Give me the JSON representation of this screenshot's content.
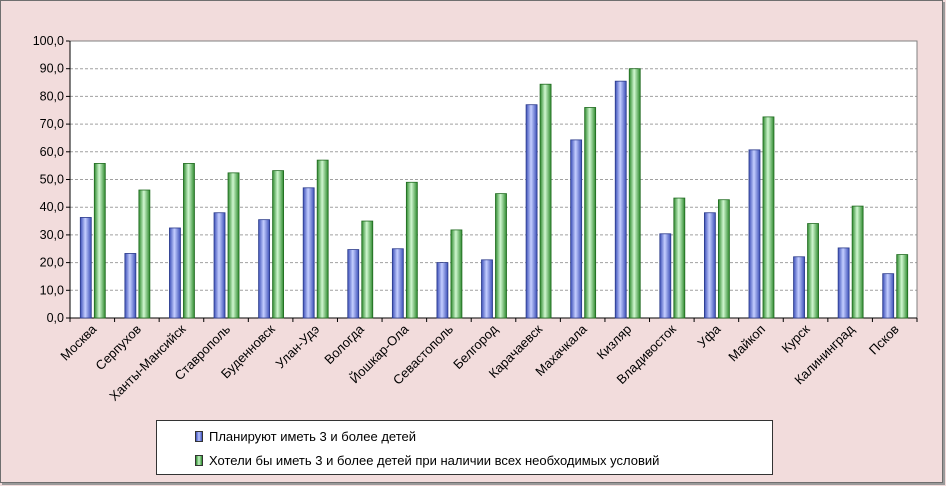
{
  "colors": {
    "background": "#f2dcdc",
    "plan_fill": "#8a9ef0",
    "plan_stroke": "#2a3a8a",
    "want_fill": "#8ee08e",
    "want_stroke": "#1f6a1f",
    "grid": "#a0a0a0"
  },
  "legend": {
    "plan_label": "Планируют иметь 3 и более детей",
    "want_label": "Хотели бы иметь 3 и более детей при наличии всех необходимых условий"
  },
  "chart_data": {
    "type": "bar",
    "categories": [
      "Москва",
      "Серпухов",
      "Ханты-Мансийск",
      "Ставрополь",
      "Буденновск",
      "Улан-Удэ",
      "Вологда",
      "Йошкар-Ола",
      "Севастополь",
      "Белгород",
      "Карачаевск",
      "Махачкала",
      "Кизляр",
      "Владивосток",
      "Уфа",
      "Майкоп",
      "Курск",
      "Калининград",
      "Псков"
    ],
    "series": [
      {
        "name": "Планируют иметь 3 и более детей",
        "values": [
          36.3,
          23.3,
          32.5,
          38.0,
          35.5,
          47.0,
          24.7,
          25.0,
          20.0,
          21.0,
          77.0,
          64.3,
          85.5,
          30.4,
          38.0,
          60.7,
          22.1,
          25.3,
          16.0
        ]
      },
      {
        "name": "Хотели бы иметь 3 и более детей при наличии всех необходимых условий",
        "values": [
          55.8,
          46.2,
          55.8,
          52.4,
          53.2,
          57.0,
          35.0,
          49.0,
          31.8,
          44.9,
          84.4,
          76.0,
          90.0,
          43.3,
          42.7,
          72.6,
          34.1,
          40.4,
          22.9
        ]
      }
    ],
    "yticks": [
      "0,0",
      "10,0",
      "20,0",
      "30,0",
      "40,0",
      "50,0",
      "60,0",
      "70,0",
      "80,0",
      "90,0",
      "100,0"
    ],
    "ylim": [
      0,
      100
    ],
    "grid": true,
    "legend_position": "bottom"
  }
}
